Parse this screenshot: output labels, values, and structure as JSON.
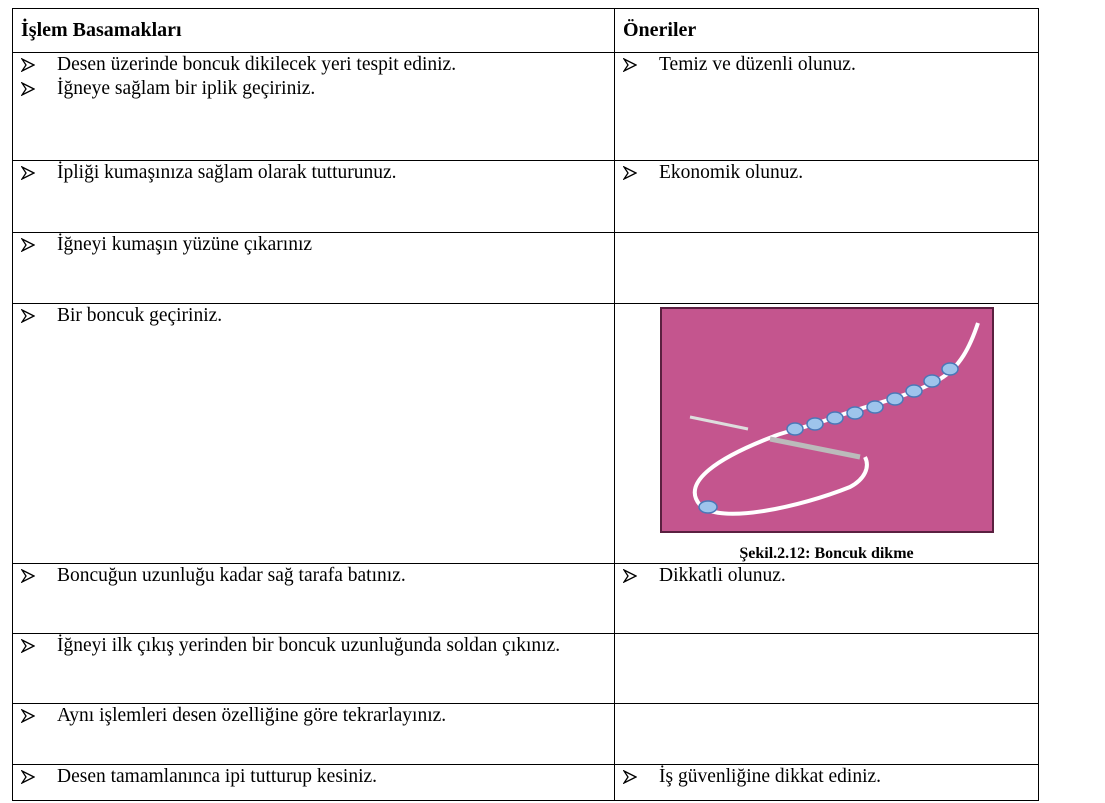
{
  "table": {
    "header": [
      "İşlem Basamakları",
      "Öneriler"
    ],
    "rows": [
      {
        "steps": [
          "Desen üzerinde boncuk dikilecek yeri tespit ediniz.",
          "İğneye sağlam bir iplik geçiriniz."
        ],
        "tips": [
          "Temiz ve düzenli olunuz."
        ]
      },
      {
        "steps": [
          "İpliği kumaşınıza sağlam olarak tutturunuz."
        ],
        "tips": [
          "Ekonomik olunuz."
        ]
      },
      {
        "steps": [
          "İğneyi kumaşın yüzüne çıkarınız"
        ],
        "tips": []
      },
      {
        "steps": [
          "Bir boncuk geçiriniz."
        ],
        "tips": [],
        "caption": "Şekil.2.12: Boncuk dikme"
      },
      {
        "steps": [
          "Boncuğun uzunluğu kadar sağ tarafa batınız."
        ],
        "tips": [
          "Dikkatli olunuz."
        ]
      },
      {
        "steps": [
          "İğneyi ilk çıkış yerinden bir boncuk uzunluğunda soldan çıkınız."
        ],
        "tips": []
      },
      {
        "steps": [
          "Aynı işlemleri desen özelliğine göre tekrarlayınız."
        ],
        "tips": []
      },
      {
        "steps": [
          "Desen tamamlanınca ipi tutturup kesiniz."
        ],
        "tips": [
          "İş güvenliğine dikkat ediniz."
        ]
      }
    ]
  }
}
